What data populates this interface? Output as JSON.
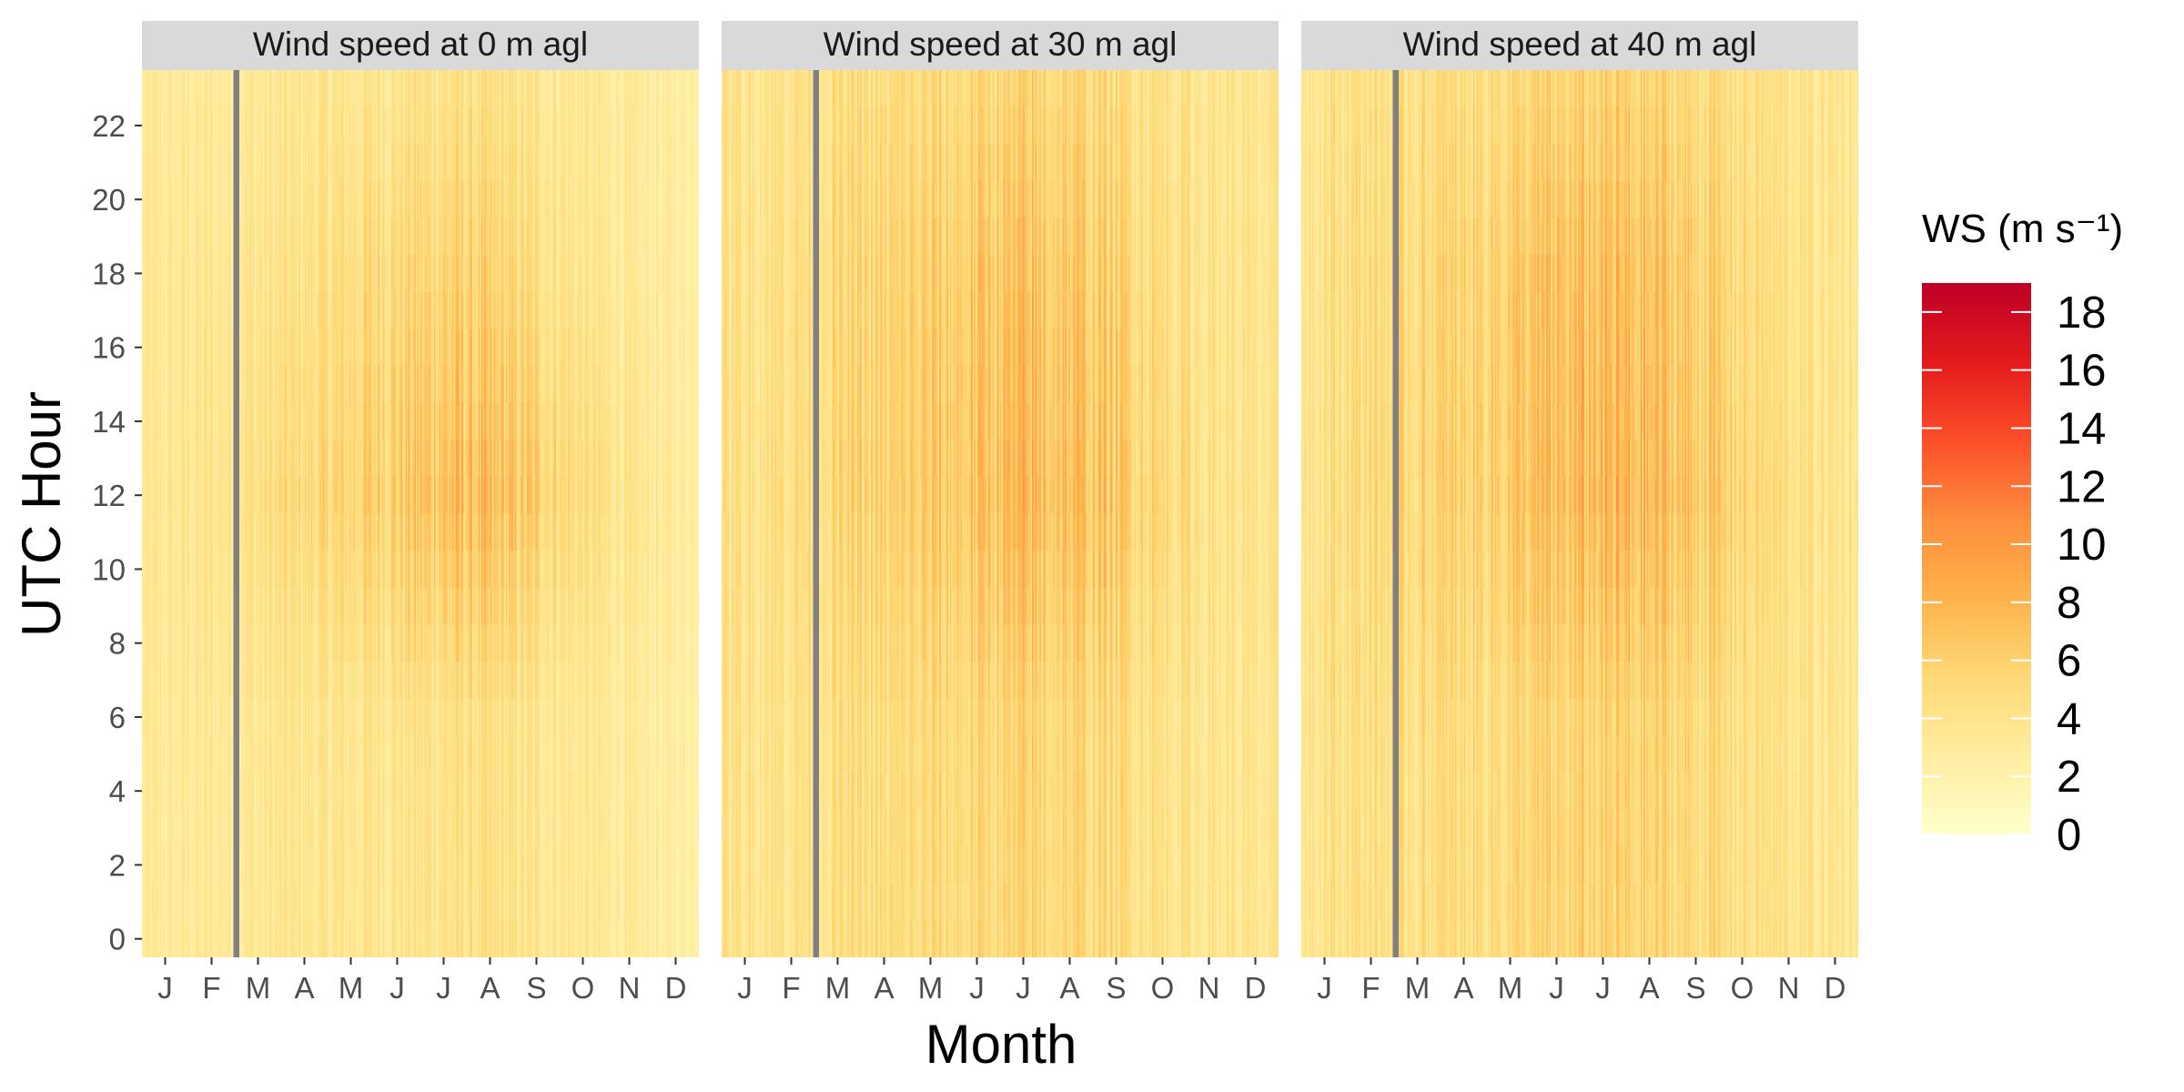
{
  "chart_data": {
    "type": "heatmap",
    "title": "",
    "xlabel": "Month",
    "ylabel": "UTC Hour",
    "x_tick_labels": [
      "J",
      "F",
      "M",
      "A",
      "M",
      "J",
      "J",
      "A",
      "S",
      "O",
      "N",
      "D"
    ],
    "y_ticks": [
      0,
      2,
      4,
      6,
      8,
      10,
      12,
      14,
      16,
      18,
      20,
      22
    ],
    "y_tick_labels": [
      "0",
      "2",
      "4",
      "6",
      "8",
      "10",
      "12",
      "14",
      "16",
      "18",
      "20",
      "22"
    ],
    "grid": false,
    "panels": [
      {
        "title": "Wind speed at 0 m agl",
        "mean_ws_by_month_at_hour_0_6_12_18_23": [
          [
            3.0,
            3.1,
            3.3,
            3.2,
            3.0
          ],
          [
            3.2,
            3.3,
            3.9,
            3.5,
            3.1
          ],
          [
            3.4,
            3.5,
            4.4,
            3.8,
            3.3
          ],
          [
            3.6,
            3.6,
            4.9,
            4.1,
            3.5
          ],
          [
            3.7,
            3.8,
            5.6,
            4.7,
            3.7
          ],
          [
            3.8,
            4.0,
            6.2,
            5.2,
            3.9
          ],
          [
            4.1,
            4.3,
            7.1,
            5.6,
            4.2
          ],
          [
            4.1,
            4.2,
            6.8,
            5.3,
            4.1
          ],
          [
            3.7,
            3.8,
            6.0,
            4.6,
            3.7
          ],
          [
            3.3,
            3.3,
            4.6,
            3.6,
            3.2
          ],
          [
            2.9,
            2.8,
            3.5,
            3.0,
            2.9
          ],
          [
            2.6,
            2.6,
            2.9,
            2.7,
            2.6
          ]
        ],
        "missing_data_gap": "early March, all hours"
      },
      {
        "title": "Wind speed at 30 m agl",
        "mean_ws_by_month_at_hour_0_6_12_18_23": [
          [
            4.0,
            4.2,
            4.3,
            4.2,
            4.0
          ],
          [
            4.2,
            4.3,
            4.8,
            4.6,
            4.2
          ],
          [
            4.4,
            4.5,
            5.2,
            4.9,
            4.4
          ],
          [
            4.6,
            4.6,
            5.6,
            5.3,
            4.6
          ],
          [
            4.8,
            4.9,
            6.2,
            5.8,
            4.8
          ],
          [
            5.0,
            5.1,
            6.7,
            6.3,
            5.1
          ],
          [
            5.3,
            5.4,
            7.4,
            6.7,
            5.4
          ],
          [
            5.2,
            5.3,
            7.1,
            6.4,
            5.3
          ],
          [
            4.8,
            4.9,
            6.4,
            5.7,
            4.8
          ],
          [
            4.3,
            4.3,
            5.2,
            4.7,
            4.3
          ],
          [
            3.8,
            3.8,
            4.2,
            4.0,
            3.8
          ],
          [
            3.5,
            3.5,
            3.7,
            3.6,
            3.5
          ]
        ],
        "missing_data_gap": "early March, all hours"
      },
      {
        "title": "Wind speed at 40 m agl",
        "mean_ws_by_month_at_hour_0_6_12_18_23": [
          [
            4.2,
            4.4,
            4.5,
            4.4,
            4.2
          ],
          [
            4.4,
            4.5,
            5.0,
            4.8,
            4.4
          ],
          [
            4.6,
            4.7,
            5.4,
            5.1,
            4.6
          ],
          [
            4.8,
            4.8,
            5.8,
            5.5,
            4.8
          ],
          [
            5.0,
            5.1,
            6.4,
            6.1,
            5.0
          ],
          [
            5.2,
            5.3,
            6.9,
            6.6,
            5.3
          ],
          [
            5.5,
            5.6,
            7.6,
            7.0,
            5.6
          ],
          [
            5.4,
            5.5,
            7.3,
            6.7,
            5.5
          ],
          [
            5.0,
            5.1,
            6.6,
            6.0,
            5.0
          ],
          [
            4.5,
            4.5,
            5.4,
            4.9,
            4.5
          ],
          [
            4.0,
            4.0,
            4.4,
            4.2,
            4.0
          ],
          [
            3.7,
            3.7,
            3.9,
            3.8,
            3.7
          ]
        ],
        "missing_data_gap": "early March, all hours"
      }
    ],
    "legend": {
      "title": "WS (m s⁻¹)",
      "placement": "right",
      "range": [
        0,
        19
      ],
      "ticks": [
        0,
        2,
        4,
        6,
        8,
        10,
        12,
        14,
        16,
        18
      ],
      "tick_labels": [
        "0",
        "2",
        "4",
        "6",
        "8",
        "10",
        "12",
        "14",
        "16",
        "18"
      ],
      "colors": [
        "#ffffcc",
        "#ffeda0",
        "#fed976",
        "#feb24c",
        "#fd8d3c",
        "#fc4e2a",
        "#e31a1c",
        "#bd0026"
      ]
    },
    "missing_color": "#808080",
    "strip_color": "#d9d9d9"
  }
}
